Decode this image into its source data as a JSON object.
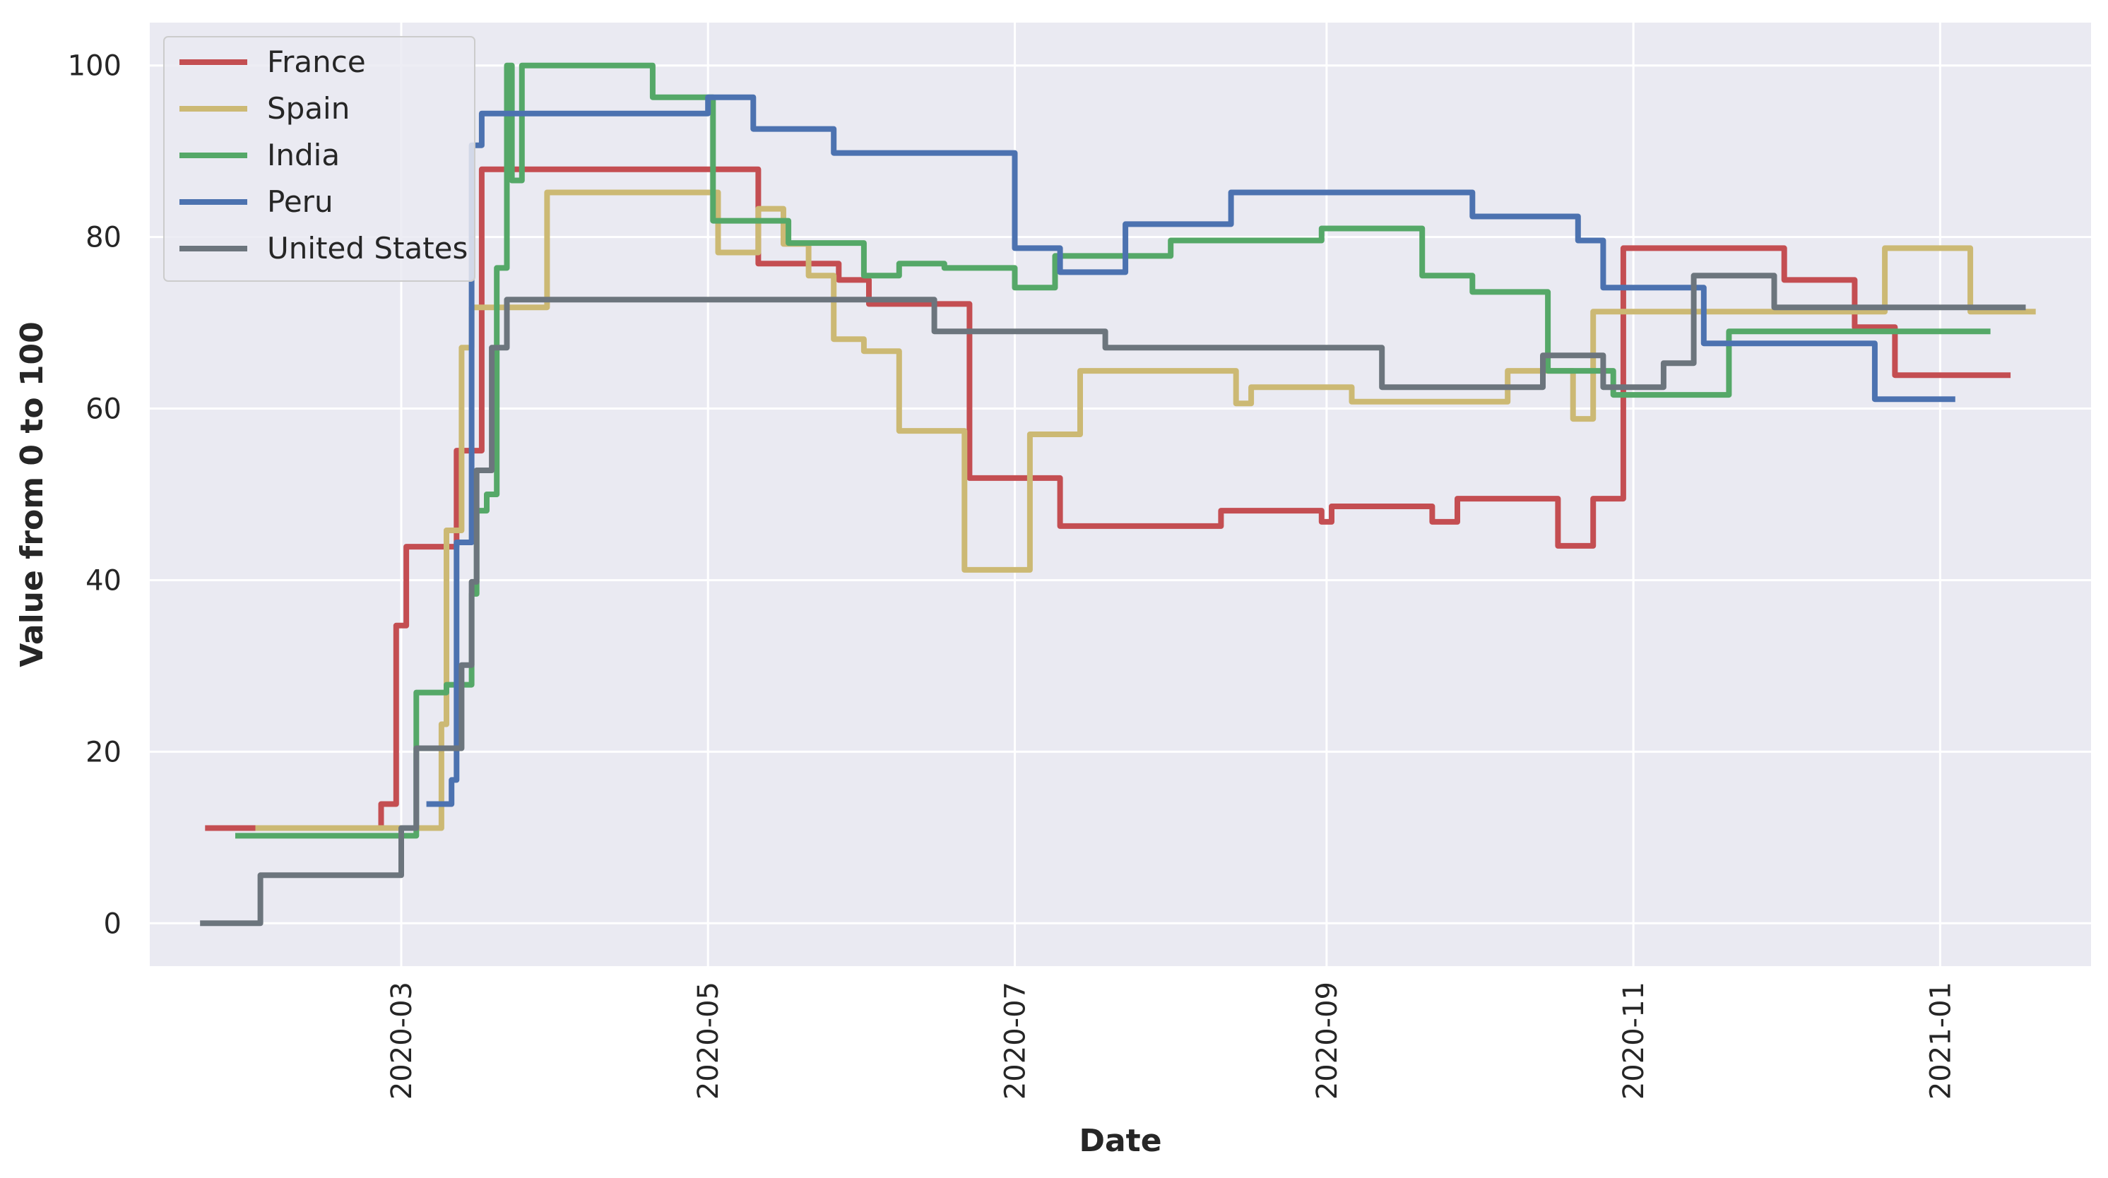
{
  "chart_data": {
    "type": "line",
    "step": true,
    "xlabel": "Date",
    "ylabel": "Value from 0 to 100",
    "x_type": "date",
    "xlim": [
      "2020-01-11",
      "2021-01-31"
    ],
    "ylim": [
      -5,
      105
    ],
    "x_ticks": [
      "2020-03-01",
      "2020-05-01",
      "2020-07-01",
      "2020-09-01",
      "2020-11-01",
      "2021-01-01"
    ],
    "x_tick_labels": [
      "2020-03",
      "2020-05",
      "2020-07",
      "2020-09",
      "2020-11",
      "2021-01"
    ],
    "y_ticks": [
      0,
      20,
      40,
      60,
      80,
      100
    ],
    "y_tick_labels": [
      "0",
      "20",
      "40",
      "60",
      "80",
      "100"
    ],
    "grid": true,
    "legend_position": "top-left",
    "background": "#eaeaf2",
    "series": [
      {
        "name": "France",
        "color": "#c44e52",
        "points": [
          [
            "2020-01-22",
            11.1
          ],
          [
            "2020-02-26",
            13.9
          ],
          [
            "2020-02-29",
            34.7
          ],
          [
            "2020-03-02",
            43.9
          ],
          [
            "2020-03-12",
            55.1
          ],
          [
            "2020-03-17",
            87.9
          ],
          [
            "2020-05-11",
            76.9
          ],
          [
            "2020-05-27",
            75.0
          ],
          [
            "2020-06-02",
            72.2
          ],
          [
            "2020-06-22",
            51.9
          ],
          [
            "2020-07-10",
            46.3
          ],
          [
            "2020-08-11",
            48.1
          ],
          [
            "2020-08-31",
            46.8
          ],
          [
            "2020-09-02",
            48.6
          ],
          [
            "2020-09-22",
            46.8
          ],
          [
            "2020-09-27",
            49.5
          ],
          [
            "2020-10-17",
            44.0
          ],
          [
            "2020-10-24",
            49.5
          ],
          [
            "2020-10-30",
            78.7
          ],
          [
            "2020-12-01",
            75.0
          ],
          [
            "2020-12-15",
            69.5
          ],
          [
            "2020-12-23",
            63.9
          ],
          [
            "2021-01-15",
            63.9
          ]
        ]
      },
      {
        "name": "Spain",
        "color": "#ccb974",
        "points": [
          [
            "2020-02-01",
            11.1
          ],
          [
            "2020-03-09",
            23.2
          ],
          [
            "2020-03-10",
            45.8
          ],
          [
            "2020-03-13",
            67.1
          ],
          [
            "2020-03-15",
            71.8
          ],
          [
            "2020-03-30",
            85.2
          ],
          [
            "2020-05-03",
            78.2
          ],
          [
            "2020-05-11",
            83.3
          ],
          [
            "2020-05-16",
            79.2
          ],
          [
            "2020-05-21",
            75.5
          ],
          [
            "2020-05-26",
            68.1
          ],
          [
            "2020-06-01",
            66.7
          ],
          [
            "2020-06-08",
            57.4
          ],
          [
            "2020-06-21",
            41.2
          ],
          [
            "2020-07-04",
            57.0
          ],
          [
            "2020-07-14",
            64.4
          ],
          [
            "2020-08-14",
            60.6
          ],
          [
            "2020-08-17",
            62.5
          ],
          [
            "2020-09-06",
            60.8
          ],
          [
            "2020-10-07",
            64.4
          ],
          [
            "2020-10-20",
            58.8
          ],
          [
            "2020-10-24",
            71.3
          ],
          [
            "2020-12-21",
            78.7
          ],
          [
            "2021-01-07",
            71.3
          ],
          [
            "2021-01-20",
            71.3
          ]
        ]
      },
      {
        "name": "India",
        "color": "#55a868",
        "points": [
          [
            "2020-01-28",
            10.2
          ],
          [
            "2020-03-04",
            26.9
          ],
          [
            "2020-03-10",
            27.8
          ],
          [
            "2020-03-15",
            38.4
          ],
          [
            "2020-03-16",
            48.1
          ],
          [
            "2020-03-18",
            50.0
          ],
          [
            "2020-03-20",
            76.4
          ],
          [
            "2020-03-22",
            100.0
          ],
          [
            "2020-03-23",
            86.6
          ],
          [
            "2020-03-25",
            100.0
          ],
          [
            "2020-04-20",
            96.3
          ],
          [
            "2020-05-02",
            81.9
          ],
          [
            "2020-05-17",
            79.3
          ],
          [
            "2020-06-01",
            75.5
          ],
          [
            "2020-06-08",
            76.9
          ],
          [
            "2020-06-17",
            76.4
          ],
          [
            "2020-07-01",
            74.1
          ],
          [
            "2020-07-09",
            77.8
          ],
          [
            "2020-08-01",
            79.6
          ],
          [
            "2020-08-31",
            81.0
          ],
          [
            "2020-09-20",
            75.5
          ],
          [
            "2020-09-30",
            73.6
          ],
          [
            "2020-10-15",
            64.4
          ],
          [
            "2020-10-28",
            61.6
          ],
          [
            "2020-11-20",
            69.0
          ],
          [
            "2021-01-11",
            69.0
          ]
        ]
      },
      {
        "name": "Peru",
        "color": "#4c72b0",
        "points": [
          [
            "2020-03-06",
            13.9
          ],
          [
            "2020-03-11",
            16.7
          ],
          [
            "2020-03-12",
            44.4
          ],
          [
            "2020-03-15",
            90.7
          ],
          [
            "2020-03-17",
            94.4
          ],
          [
            "2020-05-01",
            96.3
          ],
          [
            "2020-05-10",
            92.6
          ],
          [
            "2020-05-26",
            89.8
          ],
          [
            "2020-07-01",
            78.7
          ],
          [
            "2020-07-10",
            75.9
          ],
          [
            "2020-07-23",
            81.5
          ],
          [
            "2020-08-13",
            85.2
          ],
          [
            "2020-09-30",
            82.4
          ],
          [
            "2020-10-21",
            79.6
          ],
          [
            "2020-10-26",
            74.1
          ],
          [
            "2020-11-15",
            67.6
          ],
          [
            "2020-12-19",
            61.1
          ],
          [
            "2021-01-04",
            61.1
          ]
        ]
      },
      {
        "name": "United States",
        "color": "#6c757d",
        "points": [
          [
            "2020-01-21",
            0.0
          ],
          [
            "2020-02-02",
            5.6
          ],
          [
            "2020-03-01",
            11.1
          ],
          [
            "2020-03-04",
            20.4
          ],
          [
            "2020-03-13",
            30.1
          ],
          [
            "2020-03-15",
            39.8
          ],
          [
            "2020-03-16",
            52.8
          ],
          [
            "2020-03-19",
            67.1
          ],
          [
            "2020-03-22",
            72.7
          ],
          [
            "2020-06-15",
            69.0
          ],
          [
            "2020-07-19",
            67.1
          ],
          [
            "2020-09-12",
            62.5
          ],
          [
            "2020-10-14",
            66.2
          ],
          [
            "2020-10-26",
            62.5
          ],
          [
            "2020-11-07",
            65.3
          ],
          [
            "2020-11-13",
            75.5
          ],
          [
            "2020-11-29",
            71.8
          ],
          [
            "2021-01-18",
            71.8
          ]
        ]
      }
    ]
  }
}
